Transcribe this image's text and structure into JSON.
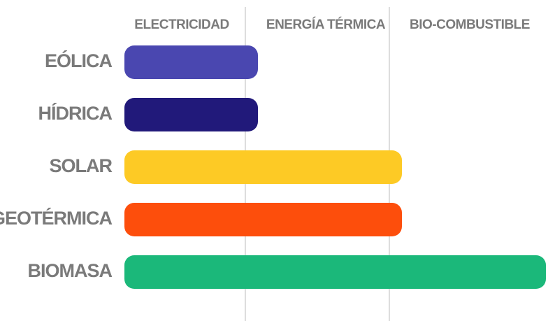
{
  "chart_data": {
    "type": "bar",
    "orientation": "horizontal",
    "columns": [
      "ELECTRICIDAD",
      "ENERGÍA TÉRMICA",
      "BIO-COMBUSTIBLE"
    ],
    "categories": [
      "EÓLICA",
      "HÍDRICA",
      "SOLAR",
      "GEOTÉRMICA",
      "BIOMASA"
    ],
    "values": [
      1,
      1,
      2,
      2,
      3
    ],
    "colors": [
      "#4a47b0",
      "#21197a",
      "#fdca25",
      "#fd4e0c",
      "#1bb87a"
    ]
  }
}
